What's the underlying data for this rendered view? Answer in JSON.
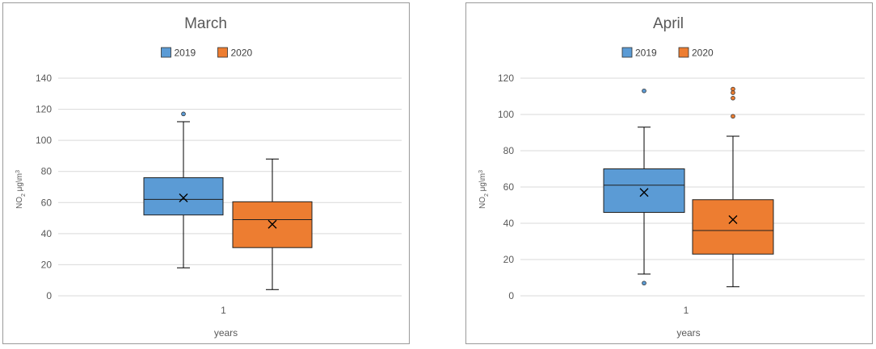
{
  "chart_data": [
    {
      "type": "box",
      "title": "March",
      "xlabel": "years",
      "ylabel": "NO",
      "ylabel_sub": "2",
      "ylabel_unit": " μg\\m",
      "ylabel_sup": "3",
      "categories": [
        "1"
      ],
      "ylim": [
        0,
        140
      ],
      "yticks": [
        0,
        20,
        40,
        60,
        80,
        100,
        120,
        140
      ],
      "ytick_labels": [
        "0",
        "20",
        "40",
        "60",
        "80",
        "100",
        "120",
        "140"
      ],
      "grid": true,
      "legend": "top",
      "series": [
        {
          "name": "2019",
          "color": "#5b9bd5",
          "min": 18,
          "q1": 52,
          "median": 62,
          "q3": 76,
          "max": 112,
          "mean": 63,
          "outliers": [
            117
          ]
        },
        {
          "name": "2020",
          "color": "#ed7d31",
          "min": 4,
          "q1": 31,
          "median": 49,
          "q3": 60.5,
          "max": 88,
          "mean": 46,
          "outliers": []
        }
      ]
    },
    {
      "type": "box",
      "title": "April",
      "xlabel": "years",
      "ylabel": "NO",
      "ylabel_sub": "2",
      "ylabel_unit": " μg\\m",
      "ylabel_sup": "3",
      "categories": [
        "1"
      ],
      "ylim": [
        0,
        120
      ],
      "yticks": [
        0,
        20,
        40,
        60,
        80,
        100,
        120
      ],
      "ytick_labels": [
        "0",
        "20",
        "40",
        "60",
        "80",
        "100",
        "120"
      ],
      "grid": true,
      "legend": "top",
      "series": [
        {
          "name": "2019",
          "color": "#5b9bd5",
          "min": 12,
          "q1": 46,
          "median": 61,
          "q3": 70,
          "max": 93,
          "mean": 57,
          "outliers": [
            113,
            7
          ]
        },
        {
          "name": "2020",
          "color": "#ed7d31",
          "min": 5,
          "q1": 23,
          "median": 36,
          "q3": 53,
          "max": 88,
          "mean": 42,
          "outliers": [
            114,
            112,
            109,
            99
          ]
        }
      ]
    }
  ]
}
